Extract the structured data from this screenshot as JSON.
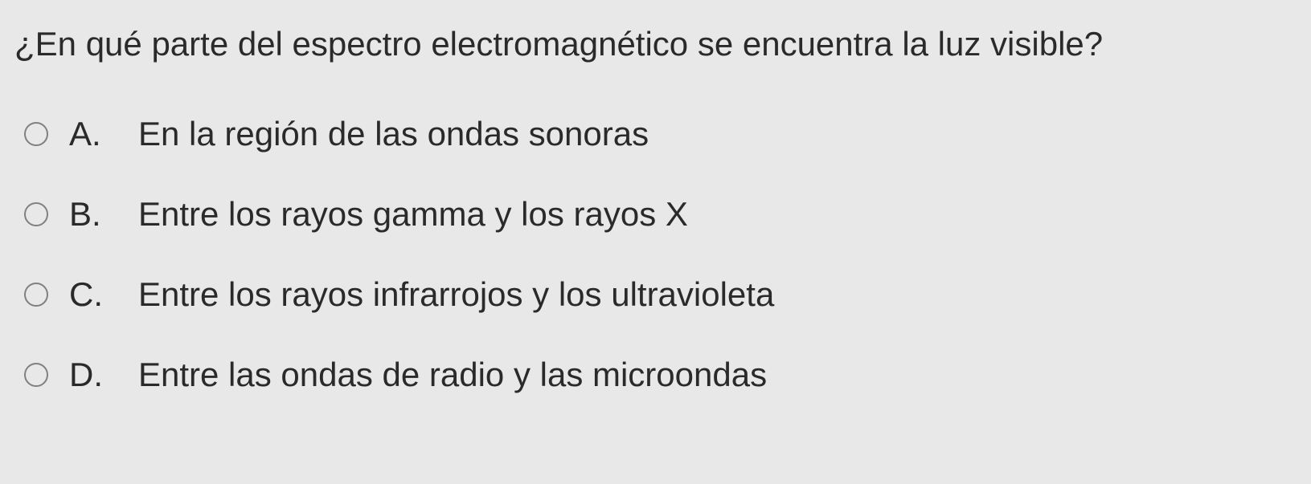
{
  "question": {
    "text": "¿En qué parte del espectro electromagnético se encuentra la luz visible?",
    "font_size": 42,
    "color": "#2a2a2a"
  },
  "options": [
    {
      "letter": "A.",
      "label": "En la región de las ondas sonoras"
    },
    {
      "letter": "B.",
      "label": "Entre los rayos gamma y los rayos X"
    },
    {
      "letter": "C.",
      "label": "Entre los rayos infrarrojos y los ultravioleta"
    },
    {
      "letter": "D.",
      "label": "Entre las ondas de radio y las microondas"
    }
  ],
  "styling": {
    "background_color": "#e8e8e8",
    "text_color": "#2a2a2a",
    "radio_border_color": "#808080",
    "option_font_size": 42,
    "option_gap": 52
  }
}
